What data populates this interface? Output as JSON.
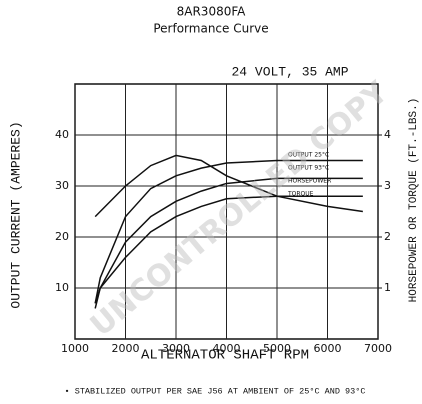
{
  "chart_data": {
    "type": "line",
    "title": "8AR3080FA",
    "subtitle": "Performance Curve",
    "annotation": "24 VOLT, 35 AMP",
    "watermark": "UNCONTROLLED COPY",
    "xlabel": "ALTERNATOR SHAFT RPM",
    "ylabel": "OUTPUT CURRENT (AMPERES)",
    "y2label": "HORSEPOWER OR TORQUE (FT.-LBS.)",
    "footnote": "• STABILIZED OUTPUT PER SAE J56 AT AMBIENT OF 25°C AND 93°C",
    "x": [
      1400,
      1500,
      2000,
      2500,
      3000,
      3500,
      4000,
      5000,
      6000,
      6700
    ],
    "series": [
      {
        "name": "OUTPUT 25°C",
        "color": "#111111",
        "values": [
          7,
          12,
          24,
          29.5,
          32,
          33.5,
          34.5,
          35,
          35,
          35
        ]
      },
      {
        "name": "OUTPUT 93°C",
        "color": "#111111",
        "values": [
          6,
          10,
          19,
          24,
          27,
          29,
          30.5,
          31.5,
          31.5,
          31.5
        ]
      },
      {
        "name": "HORSEPOWER",
        "color": "#111111",
        "axis": "y2",
        "values": [
          0.7,
          1.0,
          1.6,
          2.1,
          2.4,
          2.6,
          2.75,
          2.8,
          2.8,
          2.8
        ]
      },
      {
        "name": "TORQUE",
        "color": "#111111",
        "axis": "y2",
        "values": [
          2.4,
          2.5,
          3.0,
          3.4,
          3.6,
          3.5,
          3.2,
          2.8,
          2.6,
          2.5
        ]
      }
    ],
    "xlim": [
      1000,
      7000
    ],
    "xticks": [
      1000,
      2000,
      3000,
      4000,
      5000,
      6000,
      7000
    ],
    "ylim": [
      0,
      50
    ],
    "yticks": [
      10,
      20,
      30,
      40
    ],
    "y2lim": [
      0,
      5
    ],
    "y2ticks": [
      1,
      2,
      3,
      4
    ],
    "grid": true
  }
}
